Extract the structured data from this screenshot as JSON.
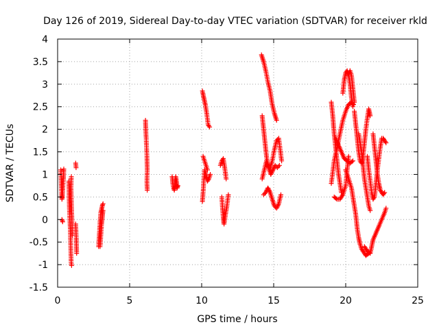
{
  "chart_data": {
    "type": "scatter",
    "title": "Day 126 of 2019, Sidereal Day-to-day VTEC variation (SDTVAR) for receiver rkld",
    "xlabel": "GPS time / hours",
    "ylabel": "SDTVAR / TECUs",
    "xlim": [
      0,
      25
    ],
    "ylim": [
      -1.5,
      4
    ],
    "xticks": [
      0,
      5,
      10,
      15,
      20,
      25
    ],
    "xtick_labels": [
      "0",
      "5",
      "10",
      "15",
      "20",
      "25"
    ],
    "yticks": [
      -1.5,
      -1,
      -0.5,
      0,
      0.5,
      1,
      1.5,
      2,
      2.5,
      3,
      3.5,
      4
    ],
    "ytick_labels": [
      "-1.5",
      "-1",
      "-0.5",
      "0",
      "0.5",
      "1",
      "1.5",
      "2",
      "2.5",
      "3",
      "3.5",
      "4"
    ],
    "grid": true,
    "marker": "plus",
    "color": "#ff0000",
    "series": [
      {
        "name": "SDTVAR",
        "tracks": [
          [
            [
              0.22,
              1.1
            ],
            [
              0.25,
              0.85
            ],
            [
              0.28,
              0.6
            ],
            [
              0.3,
              0.45
            ],
            [
              0.33,
              0.5
            ],
            [
              0.36,
              0.7
            ],
            [
              0.4,
              0.9
            ],
            [
              0.43,
              1.12
            ]
          ],
          [
            [
              0.3,
              0.0
            ],
            [
              0.35,
              -0.05
            ]
          ],
          [
            [
              0.78,
              0.85
            ],
            [
              0.8,
              0.55
            ],
            [
              0.82,
              0.25
            ],
            [
              0.85,
              0.0
            ],
            [
              0.88,
              -0.2
            ],
            [
              0.9,
              -0.45
            ],
            [
              0.92,
              -0.7
            ],
            [
              0.94,
              -0.95
            ],
            [
              0.97,
              -1.02
            ]
          ],
          [
            [
              0.95,
              0.95
            ],
            [
              0.93,
              0.7
            ],
            [
              0.95,
              0.4
            ],
            [
              0.98,
              0.1
            ],
            [
              1.0,
              -0.1
            ],
            [
              1.02,
              -0.35
            ]
          ],
          [
            [
              1.25,
              1.25
            ],
            [
              1.28,
              1.15
            ]
          ],
          [
            [
              1.25,
              -0.1
            ],
            [
              1.3,
              -0.45
            ],
            [
              1.32,
              -0.75
            ]
          ],
          [
            [
              2.85,
              -0.6
            ],
            [
              2.9,
              -0.3
            ],
            [
              2.95,
              -0.05
            ],
            [
              3.0,
              0.15
            ],
            [
              3.1,
              0.3
            ],
            [
              3.15,
              0.35
            ]
          ],
          [
            [
              2.95,
              -0.6
            ],
            [
              3.0,
              -0.35
            ],
            [
              3.05,
              -0.1
            ],
            [
              3.1,
              0.05
            ],
            [
              3.15,
              0.2
            ]
          ],
          [
            [
              6.1,
              2.2
            ],
            [
              6.12,
              2.0
            ],
            [
              6.15,
              1.8
            ],
            [
              6.2,
              1.4
            ],
            [
              6.22,
              1.1
            ],
            [
              6.2,
              0.85
            ],
            [
              6.22,
              0.65
            ]
          ],
          [
            [
              7.95,
              0.95
            ],
            [
              8.0,
              0.8
            ],
            [
              8.05,
              0.7
            ],
            [
              8.1,
              0.65
            ],
            [
              8.15,
              0.8
            ],
            [
              8.2,
              0.95
            ],
            [
              8.25,
              0.85
            ],
            [
              8.3,
              0.7
            ],
            [
              8.35,
              0.75
            ]
          ],
          [
            [
              10.05,
              2.85
            ],
            [
              10.15,
              2.7
            ],
            [
              10.25,
              2.55
            ],
            [
              10.35,
              2.35
            ],
            [
              10.45,
              2.1
            ],
            [
              10.55,
              2.05
            ]
          ],
          [
            [
              10.05,
              0.4
            ],
            [
              10.1,
              0.6
            ],
            [
              10.15,
              0.85
            ],
            [
              10.2,
              1.1
            ],
            [
              10.3,
              1.0
            ],
            [
              10.4,
              0.85
            ],
            [
              10.5,
              0.9
            ],
            [
              10.6,
              1.0
            ]
          ],
          [
            [
              10.1,
              1.4
            ],
            [
              10.2,
              1.3
            ],
            [
              10.3,
              1.2
            ],
            [
              10.4,
              1.1
            ]
          ],
          [
            [
              11.3,
              1.2
            ],
            [
              11.4,
              1.3
            ],
            [
              11.5,
              1.35
            ],
            [
              11.6,
              1.15
            ],
            [
              11.7,
              0.9
            ]
          ],
          [
            [
              11.4,
              0.5
            ],
            [
              11.45,
              0.25
            ],
            [
              11.5,
              0.05
            ],
            [
              11.55,
              -0.1
            ],
            [
              11.65,
              0.1
            ],
            [
              11.75,
              0.3
            ],
            [
              11.85,
              0.55
            ]
          ],
          [
            [
              14.15,
              3.65
            ],
            [
              14.3,
              3.5
            ],
            [
              14.45,
              3.3
            ],
            [
              14.6,
              3.05
            ],
            [
              14.75,
              2.85
            ],
            [
              14.9,
              2.55
            ],
            [
              15.05,
              2.35
            ],
            [
              15.2,
              2.2
            ]
          ],
          [
            [
              14.2,
              2.3
            ],
            [
              14.3,
              2.0
            ],
            [
              14.4,
              1.7
            ],
            [
              14.5,
              1.4
            ],
            [
              14.6,
              1.2
            ],
            [
              14.75,
              1.15
            ],
            [
              14.9,
              1.3
            ],
            [
              15.05,
              1.55
            ],
            [
              15.2,
              1.75
            ],
            [
              15.35,
              1.8
            ],
            [
              15.45,
              1.55
            ],
            [
              15.55,
              1.3
            ]
          ],
          [
            [
              14.2,
              0.9
            ],
            [
              14.35,
              1.1
            ],
            [
              14.5,
              1.3
            ],
            [
              14.65,
              1.15
            ],
            [
              14.8,
              1.0
            ],
            [
              14.95,
              1.1
            ],
            [
              15.1,
              1.2
            ],
            [
              15.25,
              1.15
            ],
            [
              15.4,
              1.2
            ]
          ],
          [
            [
              14.3,
              0.55
            ],
            [
              14.45,
              0.6
            ],
            [
              14.6,
              0.7
            ],
            [
              14.75,
              0.6
            ],
            [
              14.9,
              0.45
            ],
            [
              15.05,
              0.3
            ],
            [
              15.2,
              0.25
            ],
            [
              15.35,
              0.35
            ],
            [
              15.5,
              0.55
            ]
          ],
          [
            [
              19.0,
              2.6
            ],
            [
              19.1,
              2.3
            ],
            [
              19.2,
              1.9
            ],
            [
              19.3,
              1.6
            ],
            [
              19.4,
              1.3
            ],
            [
              19.5,
              1.0
            ],
            [
              19.6,
              0.8
            ],
            [
              19.7,
              0.6
            ]
          ],
          [
            [
              19.0,
              0.8
            ],
            [
              19.2,
              1.3
            ],
            [
              19.4,
              1.6
            ],
            [
              19.6,
              1.9
            ],
            [
              19.8,
              2.2
            ],
            [
              20.0,
              2.4
            ],
            [
              20.2,
              2.55
            ],
            [
              20.4,
              2.6
            ],
            [
              20.55,
              2.55
            ]
          ],
          [
            [
              19.2,
              0.5
            ],
            [
              19.4,
              0.45
            ],
            [
              19.6,
              0.45
            ],
            [
              19.8,
              0.55
            ],
            [
              20.0,
              0.75
            ],
            [
              20.1,
              1.1
            ],
            [
              20.2,
              1.4
            ]
          ],
          [
            [
              19.3,
              1.8
            ],
            [
              19.5,
              1.65
            ],
            [
              19.7,
              1.5
            ],
            [
              19.9,
              1.35
            ],
            [
              20.1,
              1.3
            ],
            [
              20.3,
              1.25
            ],
            [
              20.5,
              1.3
            ]
          ],
          [
            [
              19.8,
              2.8
            ],
            [
              19.9,
              3.1
            ],
            [
              20.0,
              3.25
            ],
            [
              20.1,
              3.3
            ],
            [
              20.2,
              3.2
            ],
            [
              20.3,
              3.0
            ],
            [
              20.4,
              2.7
            ],
            [
              20.5,
              2.5
            ]
          ],
          [
            [
              20.2,
              3.2
            ],
            [
              20.3,
              3.3
            ],
            [
              20.4,
              3.2
            ],
            [
              20.5,
              2.9
            ],
            [
              20.6,
              2.6
            ]
          ],
          [
            [
              20.0,
              1.1
            ],
            [
              20.2,
              0.9
            ],
            [
              20.4,
              0.7
            ],
            [
              20.5,
              0.5
            ],
            [
              20.6,
              0.3
            ],
            [
              20.7,
              0.1
            ],
            [
              20.8,
              -0.2
            ],
            [
              20.9,
              -0.4
            ],
            [
              21.0,
              -0.55
            ],
            [
              21.1,
              -0.65
            ],
            [
              21.2,
              -0.7
            ]
          ],
          [
            [
              20.6,
              2.4
            ],
            [
              20.7,
              2.1
            ],
            [
              20.8,
              1.8
            ],
            [
              20.9,
              1.5
            ],
            [
              21.0,
              1.3
            ],
            [
              21.1,
              1.25
            ],
            [
              21.2,
              1.4
            ],
            [
              21.3,
              1.7
            ],
            [
              21.4,
              2.0
            ],
            [
              21.5,
              2.25
            ],
            [
              21.6,
              2.45
            ],
            [
              21.7,
              2.3
            ]
          ],
          [
            [
              20.9,
              1.9
            ],
            [
              21.0,
              1.7
            ],
            [
              21.1,
              1.5
            ],
            [
              21.2,
              1.2
            ],
            [
              21.3,
              0.9
            ],
            [
              21.4,
              0.7
            ],
            [
              21.5,
              0.5
            ],
            [
              21.6,
              0.3
            ],
            [
              21.7,
              0.2
            ]
          ],
          [
            [
              21.5,
              1.4
            ],
            [
              21.6,
              1.1
            ],
            [
              21.7,
              0.85
            ],
            [
              21.8,
              0.6
            ],
            [
              21.9,
              0.45
            ],
            [
              22.0,
              0.5
            ],
            [
              22.1,
              0.8
            ],
            [
              22.2,
              1.1
            ],
            [
              22.3,
              1.35
            ],
            [
              22.4,
              1.6
            ],
            [
              22.5,
              1.8
            ],
            [
              22.6,
              1.8
            ],
            [
              22.7,
              1.75
            ],
            [
              22.8,
              1.7
            ]
          ],
          [
            [
              21.9,
              1.9
            ],
            [
              22.0,
              1.6
            ],
            [
              22.1,
              1.3
            ],
            [
              22.2,
              1.0
            ],
            [
              22.3,
              0.8
            ],
            [
              22.4,
              0.65
            ],
            [
              22.5,
              0.6
            ],
            [
              22.6,
              0.55
            ],
            [
              22.7,
              0.6
            ]
          ],
          [
            [
              21.3,
              -0.6
            ],
            [
              21.5,
              -0.7
            ],
            [
              21.7,
              -0.75
            ],
            [
              21.8,
              -0.6
            ],
            [
              21.9,
              -0.45
            ],
            [
              22.1,
              -0.3
            ],
            [
              22.3,
              -0.15
            ],
            [
              22.5,
              0.0
            ],
            [
              22.7,
              0.15
            ],
            [
              22.8,
              0.25
            ]
          ],
          [
            [
              21.2,
              -0.7
            ],
            [
              21.4,
              -0.8
            ],
            [
              21.6,
              -0.75
            ]
          ]
        ]
      }
    ]
  }
}
